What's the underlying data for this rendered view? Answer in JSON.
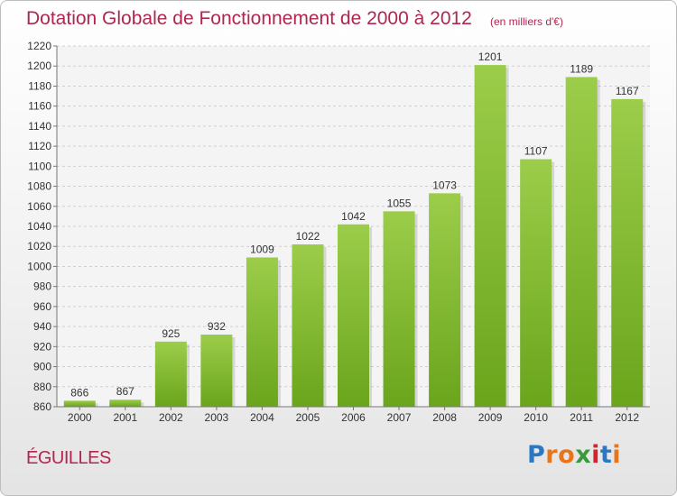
{
  "header": {
    "title": "Dotation Globale de Fonctionnement de 2000 à 2012",
    "subtitle": "(en milliers d'€)"
  },
  "footer": {
    "commune": "ÉGUILLES",
    "logo_letters": [
      "P",
      "r",
      "o",
      "x",
      "i",
      "t",
      "i"
    ],
    "logo_colors": [
      "#2a78c2",
      "#e8751a",
      "#e8751a",
      "#3a9a3a",
      "#d6232a",
      "#2a78c2",
      "#e8751a"
    ]
  },
  "chart_data": {
    "type": "bar",
    "categories": [
      "2000",
      "2001",
      "2002",
      "2003",
      "2004",
      "2005",
      "2006",
      "2007",
      "2008",
      "2009",
      "2010",
      "2011",
      "2012"
    ],
    "values": [
      866,
      867,
      925,
      932,
      1009,
      1022,
      1042,
      1055,
      1073,
      1201,
      1107,
      1189,
      1167
    ],
    "title": "Dotation Globale de Fonctionnement de 2000 à 2012",
    "subtitle": "(en milliers d'€)",
    "xlabel": "",
    "ylabel": "",
    "ylim": [
      860,
      1220
    ],
    "ytick_step": 20,
    "grid": true,
    "legend": "none",
    "colors": {
      "bar_light": "#9ccd4a",
      "bar_dark": "#6aa51c",
      "label": "#333333",
      "axis_text": "#333333"
    }
  }
}
